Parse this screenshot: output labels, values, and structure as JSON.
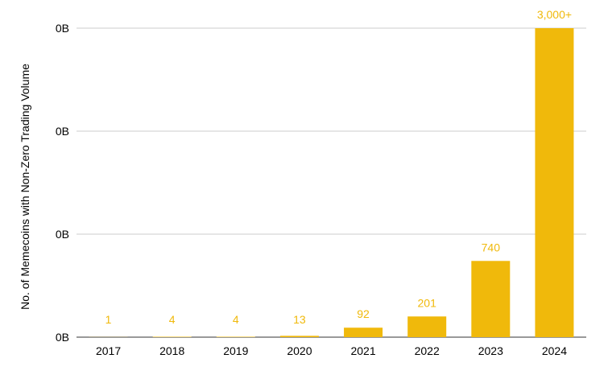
{
  "chart_data": {
    "type": "bar",
    "title": "",
    "xlabel": "",
    "ylabel": "No. of Memecoins with Non-Zero Trading Volume",
    "categories": [
      "2017",
      "2018",
      "2019",
      "2020",
      "2021",
      "2022",
      "2023",
      "2024"
    ],
    "values": [
      1,
      4,
      4,
      13,
      92,
      201,
      740,
      3000
    ],
    "data_labels": [
      "1",
      "4",
      "4",
      "13",
      "92",
      "201",
      "740",
      "3,000+"
    ],
    "y_tick_labels": [
      "0B",
      "0B",
      "0B",
      "0B"
    ],
    "ylim": [
      0,
      3000
    ],
    "grid": true,
    "legend": "none",
    "colors": {
      "bar": "#F0B90B",
      "label": "#F0B90B",
      "grid": "#cccccc",
      "axis": "#333333"
    }
  }
}
